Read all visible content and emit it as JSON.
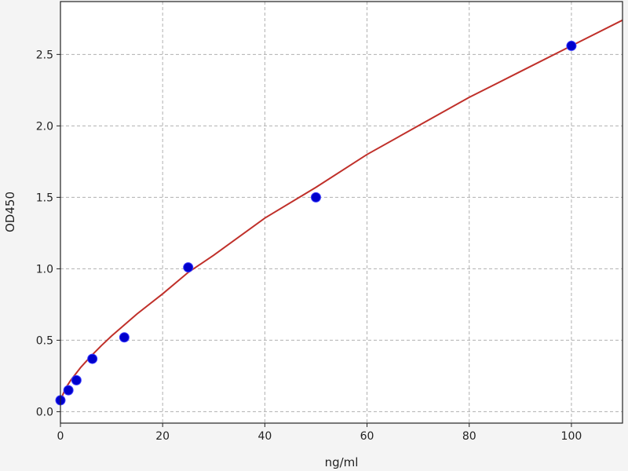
{
  "chart_data": {
    "type": "scatter",
    "title": "",
    "xlabel": "ng/ml",
    "ylabel": "OD450",
    "xlim": [
      0,
      110
    ],
    "ylim": [
      -0.08,
      2.87
    ],
    "xticks": [
      0,
      20,
      40,
      60,
      80,
      100
    ],
    "yticks": [
      0.0,
      0.5,
      1.0,
      1.5,
      2.0,
      2.5
    ],
    "xtick_labels": [
      "0",
      "20",
      "40",
      "60",
      "80",
      "100"
    ],
    "ytick_labels": [
      "0.0",
      "0.5",
      "1.0",
      "1.5",
      "2.0",
      "2.5"
    ],
    "grid": true,
    "points": {
      "x": [
        0,
        1.56,
        3.125,
        6.25,
        12.5,
        25,
        50,
        100
      ],
      "y": [
        0.08,
        0.15,
        0.22,
        0.37,
        0.52,
        1.01,
        1.5,
        2.56
      ],
      "color": "#0000cc"
    },
    "fit_curve": {
      "x": [
        0,
        1,
        2,
        4,
        6,
        8,
        10,
        15,
        20,
        25,
        30,
        40,
        50,
        60,
        70,
        80,
        90,
        100,
        110
      ],
      "y": [
        0.08,
        0.164,
        0.219,
        0.311,
        0.39,
        0.462,
        0.53,
        0.684,
        0.825,
        0.975,
        1.095,
        1.355,
        1.57,
        1.8,
        2.0,
        2.2,
        2.38,
        2.56,
        2.74
      ],
      "color": "#c0302a"
    }
  }
}
